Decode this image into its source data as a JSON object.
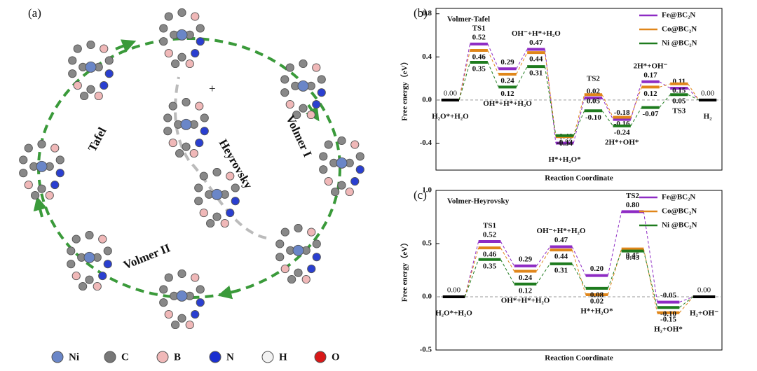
{
  "panel_a": {
    "label": "(a)",
    "steps": [
      "Tafel",
      "Volmer I",
      "Heyrovsky",
      "Volmer II"
    ],
    "plus": "+",
    "legend": [
      "Ni",
      "C",
      "B",
      "N",
      "H",
      "O"
    ]
  },
  "chart_data": [
    {
      "type": "energy",
      "panel": "(b)",
      "title": "Volmer-Tafel",
      "xlabel": "Reaction Coordinate",
      "ylabel": "Free energy（eV）",
      "categories": [
        "H₂O*+H₂O",
        "TS1",
        "OH*+H*+H₂O",
        "OH⁻+H*+H₂O",
        "H*+H₂O*",
        "TS2",
        "2H*+OH*",
        "2H*+OH⁻",
        "TS3",
        "H₂"
      ],
      "reference": {
        "value": 0,
        "label": "0.00",
        "color": "#000000"
      },
      "series": [
        {
          "name": "Fe@BC₂N",
          "color": "#8e2bc4",
          "values": [
            null,
            0.52,
            0.29,
            0.47,
            -0.4,
            0.02,
            -0.18,
            0.17,
            0.11,
            null
          ],
          "value_labels": [
            null,
            "0.52",
            "0.29",
            "0.47",
            "-0.40",
            "0.02",
            "-0.18",
            "0.17",
            "0.11",
            null
          ]
        },
        {
          "name": "Co@BC₂N",
          "color": "#e0861a",
          "values": [
            null,
            0.46,
            0.24,
            0.44,
            -0.34,
            0.05,
            -0.16,
            0.12,
            0.15,
            null
          ],
          "value_labels": [
            null,
            "0.46",
            "0.24",
            "0.44",
            "-0.34",
            "0.05",
            "-0.16",
            "0.12",
            "0.15",
            null
          ]
        },
        {
          "name": "Ni @BC₂N",
          "color": "#1e7b1e",
          "values": [
            null,
            0.35,
            0.12,
            0.31,
            -0.33,
            -0.1,
            -0.24,
            -0.07,
            0.05,
            null
          ],
          "value_labels": [
            null,
            "0.35",
            "0.12",
            "0.31",
            "-0.33",
            "-0.10",
            "-0.24",
            "-0.07",
            "0.05",
            null
          ]
        }
      ],
      "ylim": [
        -0.65,
        0.85
      ],
      "yticks": [
        -0.4,
        {
          "value": 0,
          "label": "0.0"
        },
        0.4,
        0.8
      ],
      "legend": "upper right"
    },
    {
      "type": "energy",
      "panel": "(c)",
      "title": "Volmer-Heyrovsky",
      "xlabel": "Reaction Coordinate",
      "ylabel": "Free energy（eV）",
      "categories": [
        "H₂O*+H₂O",
        "TS1",
        "OH*+H*+H₂O",
        "OH⁻+H*+H₂O",
        "H*+H₂O*",
        "TS2",
        "H₂+OH*",
        "H₂+OH⁻"
      ],
      "reference": {
        "value": 0,
        "label": "0.00",
        "color": "#000000"
      },
      "series": [
        {
          "name": "Fe@BC₂N",
          "color": "#8e2bc4",
          "values": [
            null,
            0.52,
            0.29,
            0.47,
            0.2,
            0.8,
            -0.05,
            null
          ],
          "value_labels": [
            null,
            "0.52",
            "0.29",
            "0.47",
            "0.20",
            "0.80",
            "-0.05",
            null
          ]
        },
        {
          "name": "Co@BC₂N",
          "color": "#e0861a",
          "values": [
            null,
            0.46,
            0.24,
            0.44,
            0.02,
            0.45,
            -0.15,
            null
          ],
          "value_labels": [
            null,
            "0.46",
            "0.24",
            "0.44",
            "0.02",
            "0.45",
            "-0.15",
            null
          ]
        },
        {
          "name": "Ni @BC₂N",
          "color": "#1e7b1e",
          "values": [
            null,
            0.35,
            0.12,
            0.31,
            0.08,
            0.43,
            -0.1,
            null
          ],
          "value_labels": [
            null,
            "0.35",
            "0.12",
            "0.31",
            "0.08",
            "0.43",
            "-0.10",
            null
          ]
        }
      ],
      "ylim": [
        -0.5,
        1.0
      ],
      "yticks": [
        -0.5,
        {
          "value": 0,
          "label": "0.0"
        },
        0.5,
        {
          "value": 1,
          "label": "1.0"
        }
      ],
      "legend": "upper right"
    }
  ]
}
